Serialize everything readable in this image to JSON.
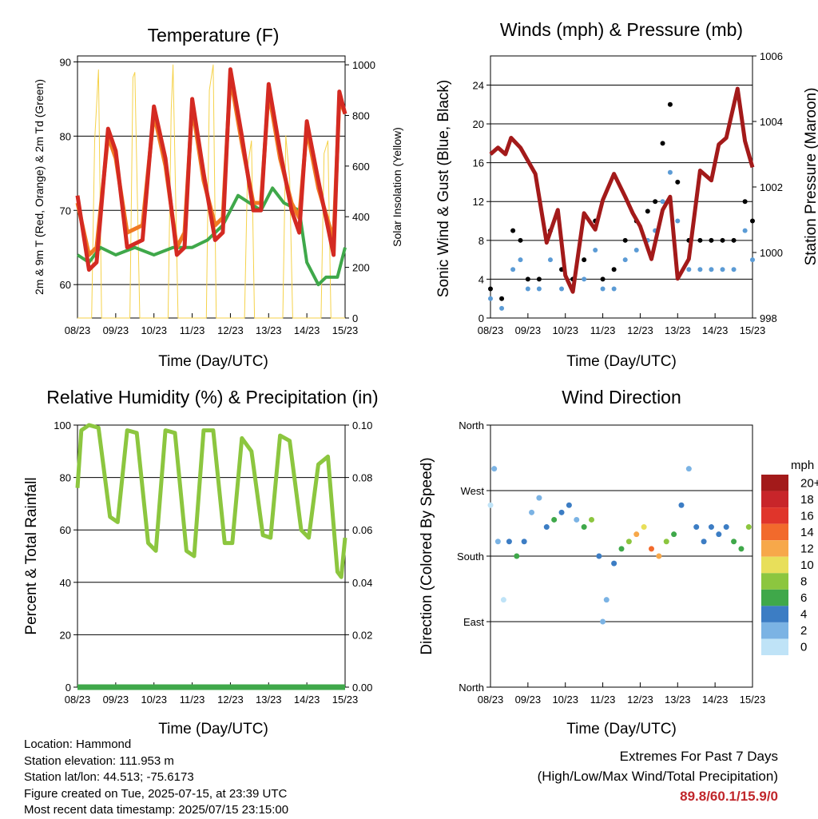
{
  "chart_data": [
    {
      "id": "temperature",
      "type": "line",
      "title": "Temperature (F)",
      "xlabel": "Time (Day/UTC)",
      "ylabel": "2m & 9m T (Red, Orange) & 2m Td (Green)",
      "ylabel_right": "Solar Insolation (Yellow)",
      "x_ticks": [
        "08/23",
        "09/23",
        "10/23",
        "11/23",
        "12/23",
        "13/23",
        "14/23",
        "15/23"
      ],
      "xlim": [
        0,
        7
      ],
      "ylim": [
        55.5,
        90.8
      ],
      "y_ticks": [
        60,
        70,
        80,
        90
      ],
      "y2lim": [
        0,
        1035
      ],
      "y2_ticks": [
        0,
        200,
        400,
        600,
        800,
        1000
      ],
      "grid_y": [
        60,
        70,
        80,
        90
      ],
      "series": [
        {
          "key": "t2m",
          "color": "#d42a22",
          "axis": "left",
          "x": [
            0,
            0.3,
            0.5,
            0.8,
            1.0,
            1.3,
            1.7,
            2.0,
            2.3,
            2.6,
            2.8,
            3.0,
            3.3,
            3.6,
            3.8,
            4.0,
            4.3,
            4.6,
            4.8,
            5.0,
            5.3,
            5.6,
            5.8,
            6.0,
            6.3,
            6.7,
            6.85,
            7.0
          ],
          "y": [
            72,
            62,
            63,
            81,
            78,
            65,
            66,
            84,
            77,
            64,
            65,
            85,
            75,
            66,
            67,
            89,
            80,
            70,
            70,
            87,
            78,
            70,
            67,
            82,
            74,
            64,
            86,
            83
          ]
        },
        {
          "key": "t9m",
          "color": "#f07a22",
          "axis": "left",
          "x": [
            0,
            0.3,
            0.5,
            0.8,
            1.0,
            1.3,
            1.7,
            2.0,
            2.3,
            2.6,
            2.8,
            3.0,
            3.3,
            3.6,
            3.8,
            4.0,
            4.3,
            4.6,
            4.8,
            5.0,
            5.3,
            5.6,
            5.8,
            6.0,
            6.3,
            6.7,
            6.85,
            7.0
          ],
          "y": [
            71,
            64,
            65,
            80,
            77,
            67,
            68,
            83,
            76,
            65,
            67,
            84,
            74,
            68,
            69,
            88,
            79,
            71,
            71,
            86,
            77,
            71,
            69,
            81,
            73,
            66,
            85,
            83
          ]
        },
        {
          "key": "td2m",
          "color": "#3fa84a",
          "axis": "left",
          "x": [
            0,
            0.3,
            0.6,
            1.0,
            1.5,
            2.0,
            2.5,
            3.0,
            3.4,
            3.8,
            4.2,
            4.5,
            4.8,
            5.1,
            5.4,
            5.8,
            6.0,
            6.3,
            6.5,
            6.8,
            7.0
          ],
          "y": [
            64,
            63,
            65,
            64,
            65,
            64,
            65,
            65,
            66,
            68,
            72,
            71,
            70,
            73,
            71,
            70,
            63,
            60,
            61,
            61,
            65
          ]
        },
        {
          "key": "solar",
          "color": "#f5d24a",
          "axis": "right",
          "style": "thin",
          "x": [
            0.0,
            0.37,
            0.45,
            0.55,
            0.63,
            1.37,
            1.45,
            1.5,
            1.63,
            2.37,
            2.45,
            2.5,
            2.63,
            3.37,
            3.45,
            3.55,
            3.63,
            4.37,
            4.45,
            4.55,
            4.63,
            5.37,
            5.45,
            5.55,
            5.63,
            6.37,
            6.45,
            6.55,
            6.63,
            7.0
          ],
          "y": [
            0,
            0,
            700,
            980,
            0,
            0,
            950,
            970,
            0,
            0,
            820,
            1000,
            0,
            0,
            900,
            1000,
            0,
            0,
            600,
            700,
            0,
            0,
            720,
            550,
            0,
            0,
            650,
            700,
            0,
            0
          ]
        }
      ]
    },
    {
      "id": "winds",
      "type": "scatter",
      "title": "Winds (mph) & Pressure (mb)",
      "xlabel": "Time (Day/UTC)",
      "ylabel": "Sonic Wind & Gust (Blue, Black)",
      "ylabel_right": "Station Pressure (Maroon)",
      "x_ticks": [
        "08/23",
        "09/23",
        "10/23",
        "11/23",
        "12/23",
        "13/23",
        "14/23",
        "15/23"
      ],
      "xlim": [
        0,
        7
      ],
      "ylim": [
        0,
        27
      ],
      "y_ticks": [
        0,
        4,
        8,
        12,
        16,
        20,
        24
      ],
      "y2lim": [
        998,
        1006
      ],
      "y2_ticks": [
        998,
        1000,
        1002,
        1004,
        1006
      ],
      "grid_y": [
        4,
        8,
        12,
        16,
        20,
        24
      ],
      "series": [
        {
          "key": "gust",
          "color": "#000000",
          "axis": "left",
          "x": [
            0,
            0.3,
            0.6,
            0.8,
            1.0,
            1.3,
            1.6,
            1.9,
            2.2,
            2.5,
            2.8,
            3.0,
            3.3,
            3.6,
            3.9,
            4.2,
            4.4,
            4.6,
            4.8,
            5.0,
            5.3,
            5.6,
            5.9,
            6.2,
            6.5,
            6.8,
            7.0
          ],
          "y": [
            3,
            2,
            9,
            8,
            4,
            4,
            9,
            5,
            4,
            6,
            10,
            4,
            5,
            8,
            10,
            11,
            12,
            18,
            22,
            14,
            8,
            8,
            8,
            8,
            8,
            12,
            10
          ]
        },
        {
          "key": "wind",
          "color": "#5b9bd5",
          "axis": "left",
          "x": [
            0,
            0.3,
            0.6,
            0.8,
            1.0,
            1.3,
            1.6,
            1.9,
            2.2,
            2.5,
            2.8,
            3.0,
            3.3,
            3.6,
            3.9,
            4.2,
            4.4,
            4.6,
            4.8,
            5.0,
            5.3,
            5.6,
            5.9,
            6.2,
            6.5,
            6.8,
            7.0
          ],
          "y": [
            2,
            1,
            5,
            6,
            3,
            3,
            6,
            3,
            3,
            4,
            7,
            3,
            3,
            6,
            7,
            8,
            9,
            12,
            15,
            10,
            5,
            5,
            5,
            5,
            5,
            9,
            6
          ]
        },
        {
          "key": "pressure",
          "color": "#a31a1a",
          "axis": "right",
          "x": [
            0,
            0.2,
            0.4,
            0.55,
            0.8,
            1.2,
            1.5,
            1.8,
            2.0,
            2.2,
            2.5,
            2.8,
            3.0,
            3.3,
            3.6,
            3.8,
            4.0,
            4.3,
            4.6,
            4.8,
            5.0,
            5.3,
            5.6,
            5.9,
            6.1,
            6.3,
            6.6,
            6.8,
            7.0
          ],
          "y": [
            1003,
            1003.2,
            1003,
            1003.5,
            1003.2,
            1002.4,
            1000.3,
            1001.3,
            999.3,
            998.8,
            1001.2,
            1000.7,
            1001.6,
            1002.4,
            1001.7,
            1001.2,
            1000.8,
            999.8,
            1001.3,
            1001.7,
            999.2,
            999.8,
            1002.5,
            1002.2,
            1003.3,
            1003.5,
            1005.0,
            1003.4,
            1002.6
          ]
        }
      ]
    },
    {
      "id": "humidity",
      "type": "line",
      "title": "Relative Humidity (%) & Precipitation (in)",
      "xlabel": "Time (Day/UTC)",
      "ylabel": "Percent & Total Rainfall",
      "x_ticks": [
        "08/23",
        "09/23",
        "10/23",
        "11/23",
        "12/23",
        "13/23",
        "14/23",
        "15/23"
      ],
      "xlim": [
        0,
        7
      ],
      "ylim": [
        0,
        100
      ],
      "y_ticks": [
        0,
        20,
        40,
        60,
        80,
        100
      ],
      "y2lim": [
        0,
        0.1
      ],
      "y2_ticks": [
        "0.00",
        "0.02",
        "0.04",
        "0.06",
        "0.08",
        "0.10"
      ],
      "grid_y": [
        20,
        40,
        60,
        80,
        100
      ],
      "series": [
        {
          "key": "rh",
          "color": "#8cc63f",
          "axis": "left",
          "x": [
            0,
            0.1,
            0.3,
            0.55,
            0.85,
            1.05,
            1.3,
            1.55,
            1.85,
            2.05,
            2.3,
            2.55,
            2.85,
            3.05,
            3.3,
            3.55,
            3.85,
            4.05,
            4.3,
            4.55,
            4.85,
            5.05,
            5.3,
            5.55,
            5.85,
            6.05,
            6.3,
            6.55,
            6.8,
            6.9,
            7.0
          ],
          "y": [
            76,
            98,
            100,
            99,
            65,
            63,
            98,
            97,
            55,
            52,
            98,
            97,
            52,
            50,
            98,
            98,
            55,
            55,
            95,
            90,
            58,
            57,
            96,
            94,
            60,
            57,
            85,
            88,
            44,
            42,
            57
          ]
        },
        {
          "key": "precip",
          "color": "#3fa84a",
          "axis": "right",
          "x": [
            0,
            7
          ],
          "y": [
            0,
            0
          ]
        }
      ]
    },
    {
      "id": "wind-direction",
      "type": "scatter",
      "title": "Wind Direction",
      "xlabel": "Time (Day/UTC)",
      "ylabel": "Direction (Colored By Speed)",
      "x_ticks": [
        "08/23",
        "09/23",
        "10/23",
        "11/23",
        "12/23",
        "13/23",
        "14/23",
        "15/23"
      ],
      "xlim": [
        0,
        7
      ],
      "y_ticks": [
        "North",
        "East",
        "South",
        "West",
        "North"
      ],
      "ylim": [
        0,
        360
      ],
      "colorbar": {
        "unit": "mph",
        "labels": [
          "20+",
          "18",
          "16",
          "14",
          "12",
          "10",
          "8",
          "6",
          "4",
          "2",
          "0"
        ],
        "colors": [
          "#a31a1a",
          "#c8252a",
          "#e0352b",
          "#f26a2c",
          "#f7a84a",
          "#e8df5a",
          "#8cc63f",
          "#3fa84a",
          "#3c7dc4",
          "#7bb3e4",
          "#bfe3f7"
        ]
      },
      "series": [
        {
          "key": "direction",
          "axis": "left",
          "x": [
            0,
            0.1,
            0.2,
            0.35,
            0.5,
            0.7,
            0.9,
            1.1,
            1.3,
            1.5,
            1.7,
            1.9,
            2.1,
            2.3,
            2.5,
            2.7,
            2.9,
            3.0,
            3.1,
            3.3,
            3.5,
            3.7,
            3.9,
            4.1,
            4.3,
            4.5,
            4.7,
            4.9,
            5.1,
            5.3,
            5.5,
            5.7,
            5.9,
            6.1,
            6.3,
            6.5,
            6.7,
            6.9
          ],
          "y": [
            250,
            300,
            200,
            120,
            200,
            180,
            200,
            240,
            260,
            220,
            230,
            240,
            250,
            230,
            220,
            230,
            180,
            90,
            120,
            170,
            190,
            200,
            210,
            220,
            190,
            180,
            200,
            210,
            250,
            300,
            220,
            200,
            220,
            210,
            220,
            200,
            190,
            220
          ],
          "speed": [
            1,
            2,
            3,
            1,
            5,
            6,
            4,
            3,
            2,
            5,
            6,
            5,
            4,
            3,
            6,
            8,
            5,
            2,
            3,
            4,
            6,
            8,
            12,
            10,
            14,
            12,
            8,
            6,
            4,
            3,
            4,
            5,
            4,
            4,
            5,
            6,
            7,
            9
          ]
        }
      ]
    }
  ],
  "info": {
    "location": "Location: Hammond",
    "elevation": "Station elevation: 111.953 m",
    "latlon": "Station lat/lon: 44.513; -75.6173",
    "created": "Figure created on Tue, 2025-07-15, at 23:39 UTC",
    "recent": "Most recent data timestamp: 2025/07/15 23:15:00"
  },
  "extremes": {
    "title": "Extremes For Past 7 Days",
    "subtitle": "(High/Low/Max Wind/Total Precipitation)",
    "value": "89.8/60.1/15.9/0"
  }
}
